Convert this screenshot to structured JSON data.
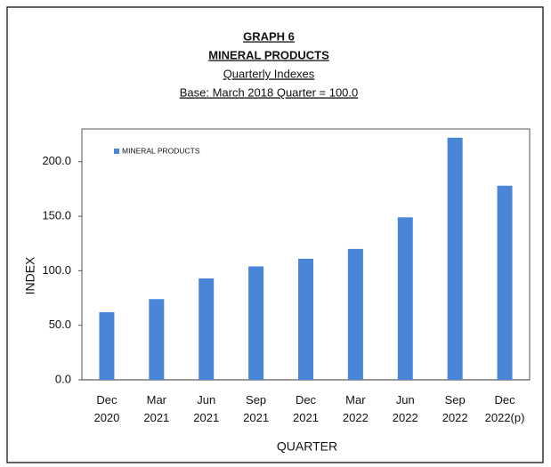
{
  "chart_data": {
    "type": "bar",
    "title": [
      "GRAPH 6",
      "MINERAL PRODUCTS",
      "Quarterly Indexes",
      "Base: March 2018 Quarter = 100.0"
    ],
    "categories": [
      "Dec 2020",
      "Mar 2021",
      "Jun 2021",
      "Sep 2021",
      "Dec 2021",
      "Mar 2022",
      "Jun 2022",
      "Sep 2022",
      "Dec 2022(p)"
    ],
    "series": [
      {
        "name": "MINERAL PRODUCTS",
        "color": "#4a86d8",
        "values": [
          62,
          74,
          93,
          104,
          111,
          120,
          149,
          222,
          178
        ]
      }
    ],
    "ylim": [
      0,
      230
    ],
    "yticks": [
      {
        "value": 0,
        "label": "0.0"
      },
      {
        "value": 50,
        "label": "50.0"
      },
      {
        "value": 100,
        "label": "100.0"
      },
      {
        "value": 150,
        "label": "150.0"
      },
      {
        "value": 200,
        "label": "200.0"
      }
    ],
    "xlabel": "QUARTER",
    "ylabel": "INDEX",
    "legend": "top-left",
    "grid": false
  }
}
